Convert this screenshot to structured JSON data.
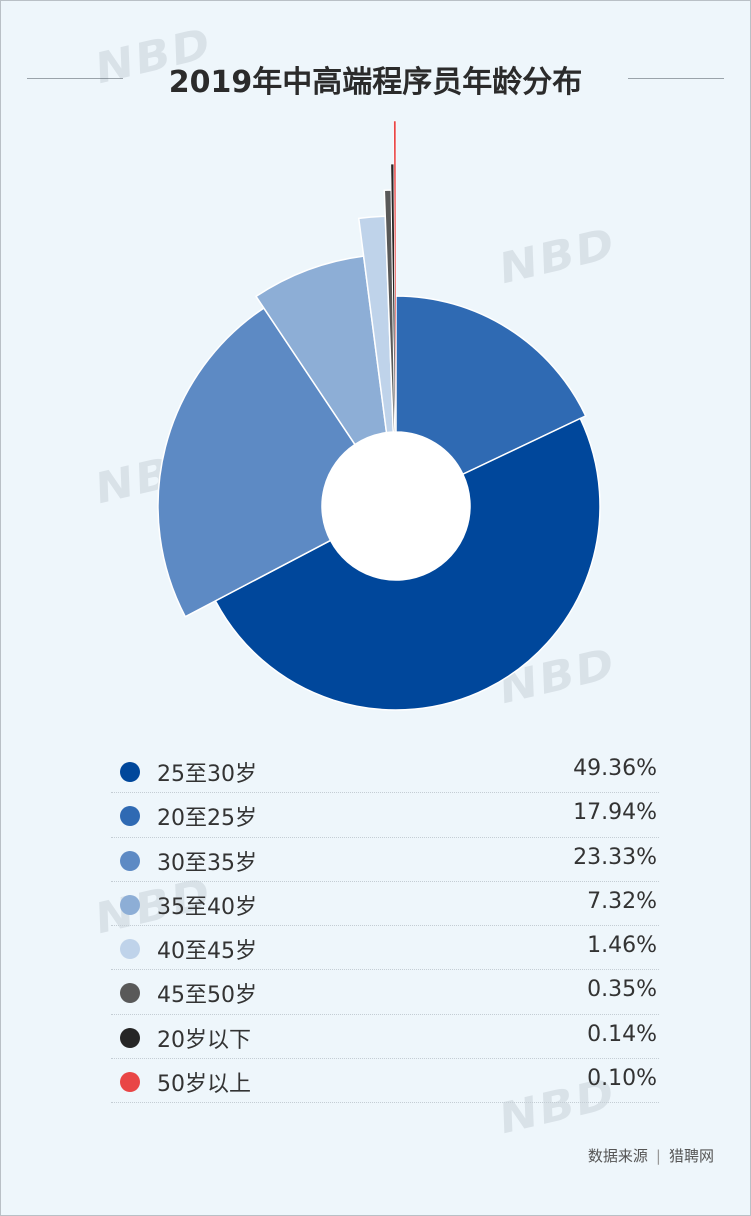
{
  "title": "2019年中高端程序员年龄分布",
  "chart_data": {
    "type": "pie",
    "title": "2019年中高端程序员年龄分布",
    "categories": [
      "25至30岁",
      "20至25岁",
      "30至35岁",
      "35至40岁",
      "40至45岁",
      "45至50岁",
      "20岁以下",
      "50岁以上"
    ],
    "values": [
      49.36,
      17.94,
      23.33,
      7.32,
      1.46,
      0.35,
      0.14,
      0.1
    ],
    "value_labels": [
      "49.36%",
      "17.94%",
      "23.33%",
      "7.32%",
      "1.46%",
      "0.35%",
      "0.14%",
      "0.10%"
    ],
    "colors": [
      "#00479b",
      "#2f6ab3",
      "#5d8ac4",
      "#8daed6",
      "#bfd3ea",
      "#595959",
      "#262626",
      "#e94646"
    ],
    "variant": "rose donut with hole",
    "legend_position": "bottom"
  },
  "source": {
    "label": "数据来源",
    "value": "猎聘网"
  },
  "watermark": {
    "logo": "NBD"
  }
}
